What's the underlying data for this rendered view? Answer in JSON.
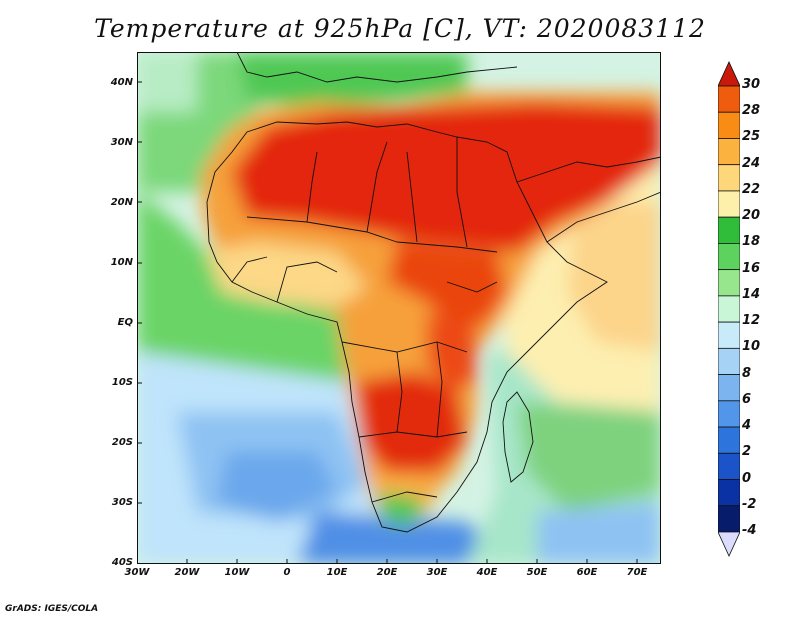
{
  "title": "Temperature at 925hPa [C], VT: 2020083112",
  "footer": "GrADS: IGES/COLA",
  "map": {
    "region": "Africa",
    "lon_range": [
      -30,
      75
    ],
    "lat_range": [
      -40,
      45
    ],
    "lon_ticks": [
      "30W",
      "20W",
      "10W",
      "0",
      "10E",
      "20E",
      "30E",
      "40E",
      "50E",
      "60E",
      "70E"
    ],
    "lat_ticks": [
      "40N",
      "30N",
      "20N",
      "10N",
      "EQ",
      "10S",
      "20S",
      "30S",
      "40S"
    ]
  },
  "colorbar": {
    "labels": [
      "30",
      "28",
      "25",
      "24",
      "22",
      "20",
      "18",
      "16",
      "14",
      "12",
      "10",
      "8",
      "6",
      "4",
      "2",
      "0",
      "-2",
      "-4"
    ],
    "colors": [
      "#e0230d",
      "#f05c0e",
      "#f88c14",
      "#fbb23f",
      "#fdd77a",
      "#fdf0ab",
      "#2fbd3a",
      "#5dd25e",
      "#97e68e",
      "#c9f6d6",
      "#c8eaf9",
      "#a6d2f6",
      "#7cb4f0",
      "#5296ea",
      "#2e74dd",
      "#1a54c8",
      "#0b32a4",
      "#081c6c"
    ],
    "top_arrow_color": "#c8190a",
    "bottom_arrow_color": "#dcdcff"
  }
}
